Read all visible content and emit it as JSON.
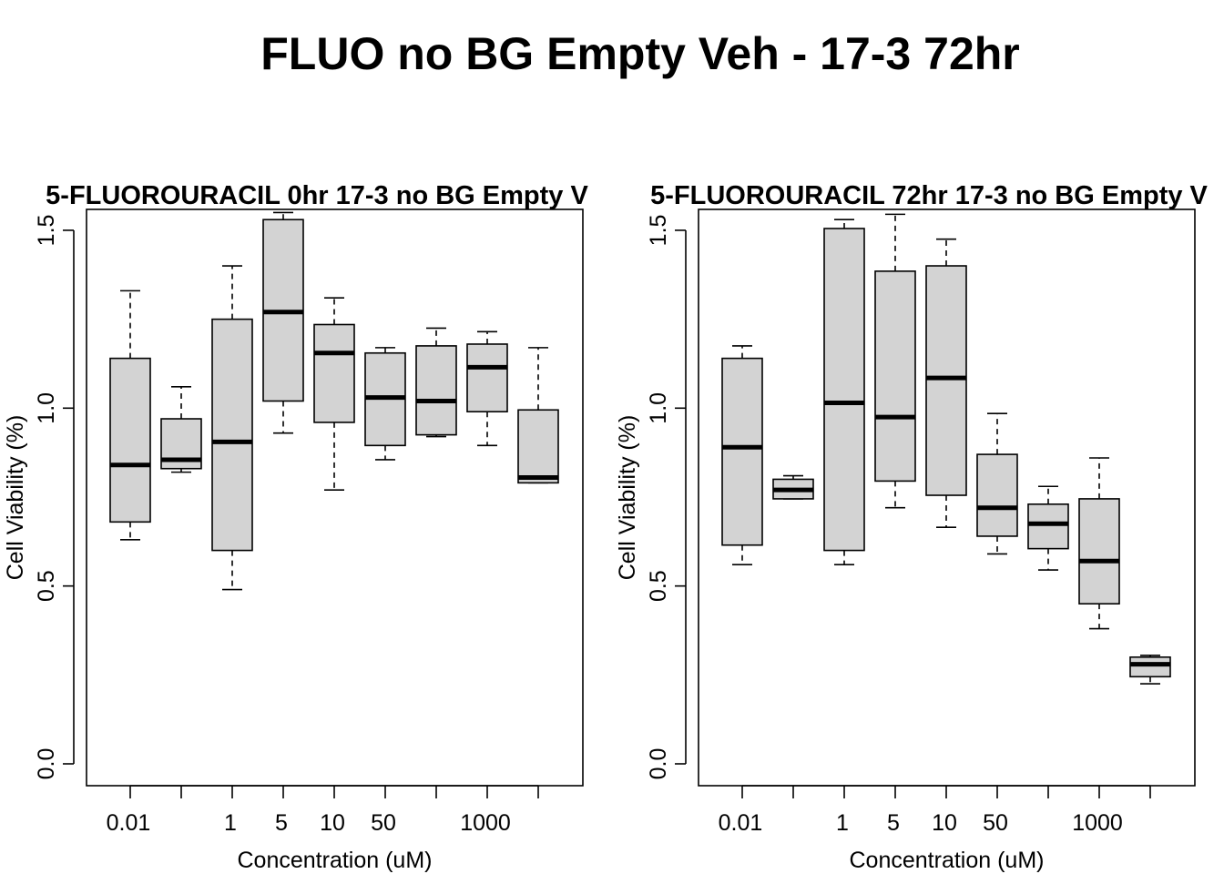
{
  "figure": {
    "title": "FLUO no BG Empty Veh - 17-3 72hr"
  },
  "chart_data": [
    {
      "type": "boxplot",
      "title": "5-FLUOROURACIL 0hr 17-3 no BG Empty V",
      "xlabel": "Concentration (uM)",
      "ylabel": "Cell Viability (%)",
      "ylim": [
        0,
        1.5
      ],
      "yticks": [
        "0.0",
        "0.5",
        "1.0",
        "1.5"
      ],
      "categories": [
        "0.01",
        "",
        "1",
        "5",
        "10",
        "50",
        "",
        "1000",
        ""
      ],
      "boxes": [
        {
          "min": 0.63,
          "q1": 0.68,
          "median": 0.84,
          "q3": 1.14,
          "max": 1.33
        },
        {
          "min": 0.82,
          "q1": 0.83,
          "median": 0.855,
          "q3": 0.97,
          "max": 1.06
        },
        {
          "min": 0.49,
          "q1": 0.6,
          "median": 0.905,
          "q3": 1.25,
          "max": 1.4
        },
        {
          "min": 0.93,
          "q1": 1.02,
          "median": 1.27,
          "q3": 1.53,
          "max": 1.55
        },
        {
          "min": 0.77,
          "q1": 0.96,
          "median": 1.155,
          "q3": 1.235,
          "max": 1.31
        },
        {
          "min": 0.855,
          "q1": 0.895,
          "median": 1.03,
          "q3": 1.155,
          "max": 1.17
        },
        {
          "min": 0.92,
          "q1": 0.925,
          "median": 1.02,
          "q3": 1.175,
          "max": 1.225
        },
        {
          "min": 0.895,
          "q1": 0.99,
          "median": 1.115,
          "q3": 1.18,
          "max": 1.215
        },
        {
          "min": 0.79,
          "q1": 0.79,
          "median": 0.805,
          "q3": 0.995,
          "max": 1.17
        }
      ]
    },
    {
      "type": "boxplot",
      "title": "5-FLUOROURACIL 72hr 17-3 no BG Empty V",
      "xlabel": "Concentration (uM)",
      "ylabel": "Cell Viability (%)",
      "ylim": [
        0,
        1.5
      ],
      "yticks": [
        "0.0",
        "0.5",
        "1.0",
        "1.5"
      ],
      "categories": [
        "0.01",
        "",
        "1",
        "5",
        "10",
        "50",
        "",
        "1000",
        ""
      ],
      "boxes": [
        {
          "min": 0.56,
          "q1": 0.615,
          "median": 0.89,
          "q3": 1.14,
          "max": 1.175
        },
        {
          "min": 0.745,
          "q1": 0.745,
          "median": 0.77,
          "q3": 0.8,
          "max": 0.81
        },
        {
          "min": 0.56,
          "q1": 0.6,
          "median": 1.015,
          "q3": 1.505,
          "max": 1.53
        },
        {
          "min": 0.72,
          "q1": 0.795,
          "median": 0.975,
          "q3": 1.385,
          "max": 1.545
        },
        {
          "min": 0.665,
          "q1": 0.755,
          "median": 1.085,
          "q3": 1.4,
          "max": 1.475
        },
        {
          "min": 0.59,
          "q1": 0.64,
          "median": 0.72,
          "q3": 0.87,
          "max": 0.985
        },
        {
          "min": 0.545,
          "q1": 0.605,
          "median": 0.675,
          "q3": 0.73,
          "max": 0.78
        },
        {
          "min": 0.38,
          "q1": 0.45,
          "median": 0.57,
          "q3": 0.745,
          "max": 0.86
        },
        {
          "min": 0.225,
          "q1": 0.245,
          "median": 0.28,
          "q3": 0.3,
          "max": 0.305
        }
      ]
    }
  ]
}
